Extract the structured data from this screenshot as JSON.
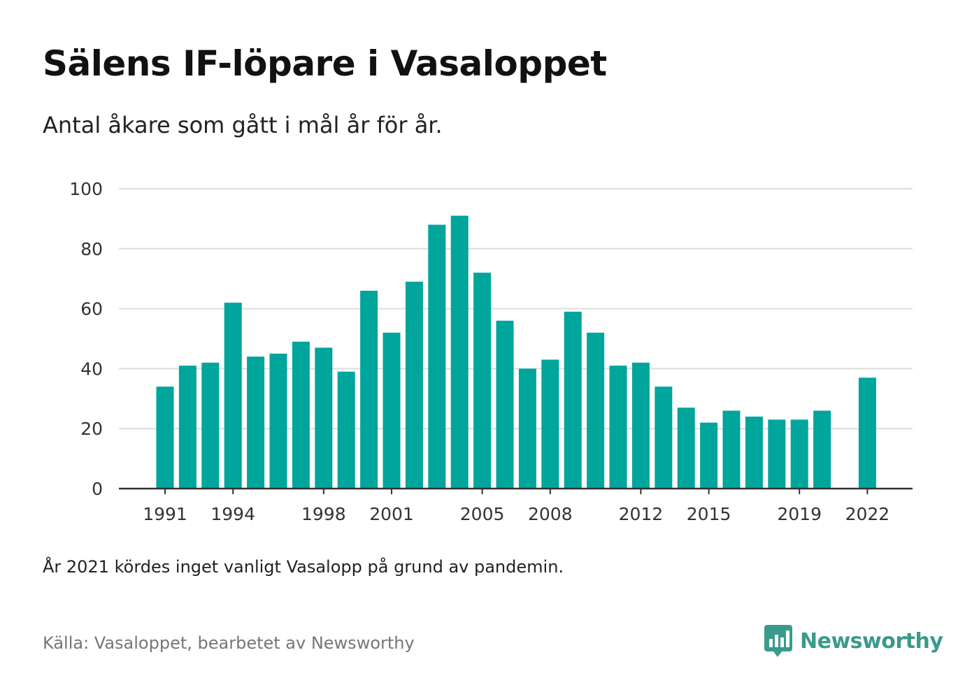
{
  "title": "Sälens IF-löpare i Vasaloppet",
  "subtitle": "Antal åkare som gått i mål år för år.",
  "note": "År 2021 kördes inget vanligt Vasalopp på grund av pandemin.",
  "source": "Källa: Vasaloppet, bearbetet av Newsworthy",
  "brand": {
    "name": "Newsworthy",
    "icon": "newsworthy-logo-icon"
  },
  "colors": {
    "bar": "#00a59b",
    "grid": "#dddddd",
    "axis": "#333333",
    "brand": "#3a9a8c"
  },
  "chart_data": {
    "type": "bar",
    "title": "Sälens IF-löpare i Vasaloppet",
    "subtitle": "Antal åkare som gått i mål år för år.",
    "xlabel": "",
    "ylabel": "",
    "categories": [
      1991,
      1992,
      1993,
      1994,
      1995,
      1996,
      1997,
      1998,
      1999,
      2000,
      2001,
      2002,
      2003,
      2004,
      2005,
      2006,
      2007,
      2008,
      2009,
      2010,
      2011,
      2012,
      2013,
      2014,
      2015,
      2016,
      2017,
      2018,
      2019,
      2020,
      2021,
      2022
    ],
    "values": [
      34,
      41,
      42,
      62,
      44,
      45,
      49,
      47,
      39,
      66,
      52,
      69,
      88,
      91,
      72,
      56,
      40,
      43,
      59,
      52,
      41,
      42,
      34,
      27,
      22,
      26,
      24,
      23,
      23,
      26,
      null,
      37
    ],
    "x_tick_labels": [
      "1991",
      "1994",
      "1998",
      "2001",
      "2005",
      "2008",
      "2012",
      "2015",
      "2019",
      "2022"
    ],
    "y_ticks": [
      0,
      20,
      40,
      60,
      80,
      100
    ],
    "ylim": [
      0,
      100
    ],
    "grid": true,
    "legend": "none"
  }
}
